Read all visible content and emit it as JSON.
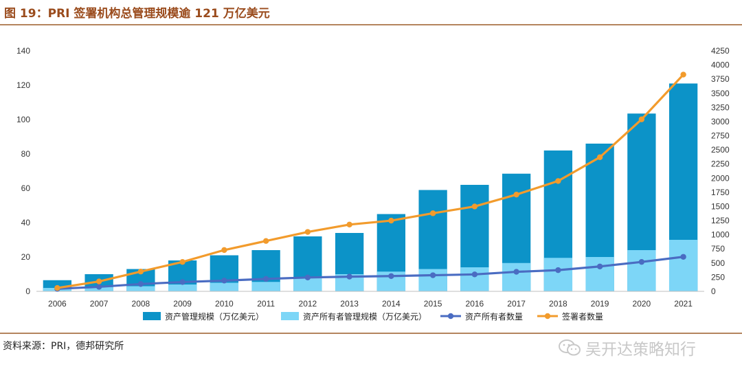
{
  "title": "图 19：PRI 签署机构总管理规模逾 121 万亿美元",
  "source": "资料来源：PRI，德邦研究所",
  "watermark": "吴开达策略知行",
  "chart_data": {
    "type": "bar+line",
    "categories": [
      "2006",
      "2007",
      "2008",
      "2009",
      "2010",
      "2011",
      "2012",
      "2013",
      "2014",
      "2015",
      "2016",
      "2017",
      "2018",
      "2019",
      "2020",
      "2021"
    ],
    "series": [
      {
        "name": "资产管理规模（万亿美元）",
        "type": "bar",
        "axis": "left",
        "color": "#0c93c8",
        "values": [
          6.5,
          10,
          13,
          18,
          21,
          24,
          32,
          34,
          45,
          59,
          62,
          68.5,
          82,
          86,
          103.5,
          121
        ]
      },
      {
        "name": "资产所有者管理规模（万亿美元）",
        "type": "bar",
        "axis": "left",
        "color": "#7dd6f7",
        "values": [
          2,
          2.5,
          3,
          4,
          5,
          5.5,
          8,
          10,
          11.5,
          13,
          14,
          16.5,
          19.5,
          20,
          24,
          30
        ]
      },
      {
        "name": "资产所有者数量",
        "type": "line",
        "axis": "right",
        "color": "#4a6cc2",
        "values": [
          45,
          80,
          130,
          165,
          190,
          220,
          245,
          260,
          270,
          285,
          300,
          345,
          375,
          440,
          520,
          610
        ]
      },
      {
        "name": "签署者数量",
        "type": "line",
        "axis": "right",
        "color": "#f29b2c",
        "values": [
          60,
          175,
          350,
          520,
          730,
          890,
          1050,
          1180,
          1250,
          1380,
          1500,
          1710,
          1950,
          2370,
          3040,
          3830
        ]
      }
    ],
    "y_left": {
      "min": 0,
      "max": 140,
      "ticks": [
        0,
        20,
        40,
        60,
        80,
        100,
        120,
        140
      ]
    },
    "y_right": {
      "min": 0,
      "max": 4250,
      "ticks": [
        0,
        250,
        500,
        750,
        1000,
        1250,
        1500,
        1750,
        2000,
        2250,
        2500,
        2750,
        3000,
        3250,
        3500,
        3750,
        4000,
        4250
      ]
    },
    "legend_position": "bottom",
    "grid": false
  }
}
